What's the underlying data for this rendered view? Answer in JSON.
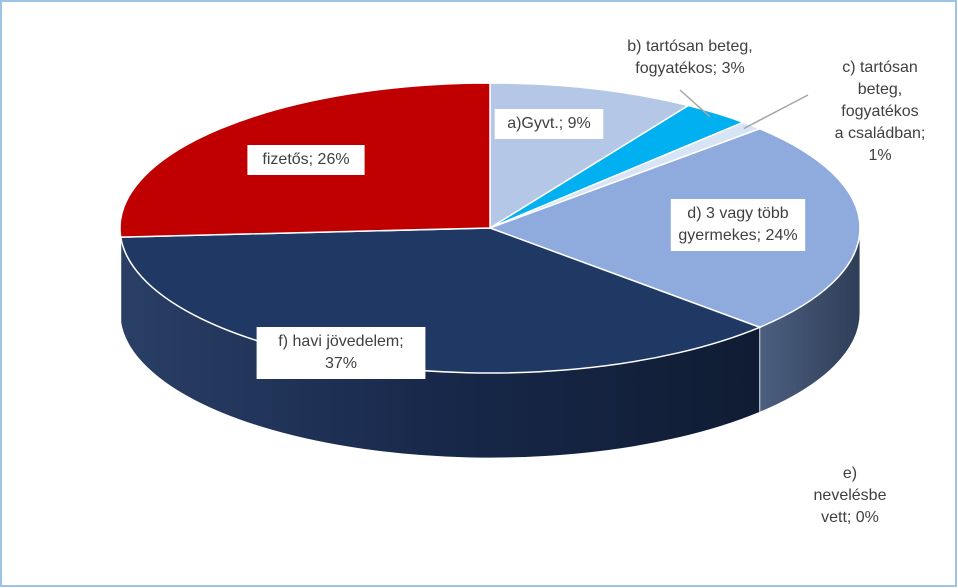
{
  "chart_data": {
    "type": "pie",
    "title": "",
    "slices": [
      {
        "label": "a)Gyvt.; 9%",
        "name": "a)Gyvt.",
        "value": 9,
        "color": "#b4c7e7"
      },
      {
        "label": "b) tartósan beteg, fogyatékos; 3%",
        "name": "b) tartósan beteg, fogyatékos",
        "value": 3,
        "color": "#00b0f0"
      },
      {
        "label": "c) tartósan beteg, fogyatékos a családban; 1%",
        "name": "c) tartósan beteg, fogyatékos a családban",
        "value": 1,
        "color": "#d6e4f5"
      },
      {
        "label": "d) 3 vagy több gyermekes; 24%",
        "name": "d) 3 vagy több gyermekes",
        "value": 24,
        "color": "#8faadc"
      },
      {
        "label": "e) nevelésbe vett; 0%",
        "name": "e) nevelésbe vett",
        "value": 0,
        "color": "#2e4a7a"
      },
      {
        "label": "f) havi jövedelem; 37%",
        "name": "f) havi jövedelem",
        "value": 37,
        "color": "#1f3864"
      },
      {
        "label": "fizetős; 26%",
        "name": "fizetős",
        "value": 26,
        "color": "#c00000"
      }
    ],
    "label_lines": {
      "a": [
        "a)Gyvt.; 9%"
      ],
      "b": [
        "b) tartósan beteg,",
        "fogyatékos; 3%"
      ],
      "c": [
        "c) tartósan",
        "beteg,",
        "fogyatékos",
        "a családban;",
        "1%"
      ],
      "d": [
        "d) 3 vagy több",
        "gyermekes; 24%"
      ],
      "e": [
        "e)",
        "nevelésbe",
        "vett; 0%"
      ],
      "f": [
        "f) havi jövedelem;",
        "37%"
      ],
      "g": [
        "fizetős; 26%"
      ]
    }
  }
}
